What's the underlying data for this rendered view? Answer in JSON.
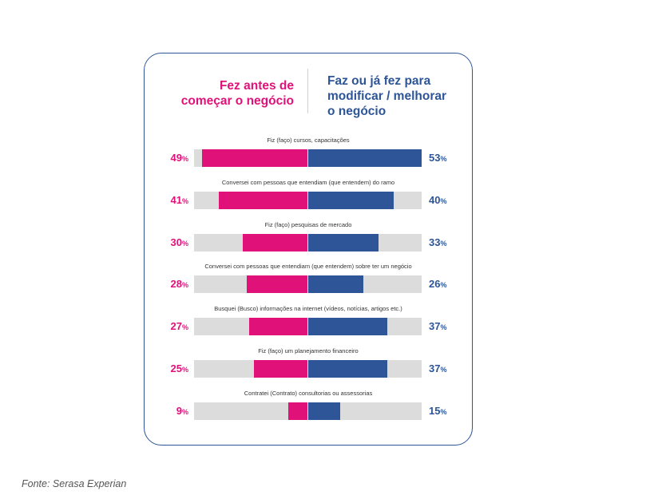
{
  "chart_data": {
    "type": "bar",
    "series": [
      {
        "name": "Fez antes de começar o negócio",
        "values": [
          49,
          41,
          30,
          28,
          27,
          25,
          9
        ]
      },
      {
        "name": "Faz ou já fez para modificar / melhorar o negócio",
        "values": [
          53,
          40,
          33,
          26,
          37,
          37,
          15
        ]
      }
    ],
    "categories": [
      "Fiz (faço) cursos, capacitações",
      "Conversei com pessoas que entendiam (que entendem) do ramo",
      "Fiz (faço) pesquisas de mercado",
      "Conversei com pessoas que entendiam (que entendem) sobre ter um negócio",
      "Busquei (Busco) informações na internet (vídeos, notícias, artigos etc.)",
      "Fiz (faço) um planejamento financeiro",
      "Contratei (Contrato) consultorias ou assessorias"
    ],
    "value_suffix": "%",
    "xlim": [
      0,
      100
    ],
    "colors": {
      "left": "#e0127a",
      "right": "#2d5597",
      "track": "#dcdcdc"
    }
  },
  "header": {
    "left_line1": "Fez antes de",
    "left_line2": "começar o negócio",
    "right_line1": "Faz ou já fez para",
    "right_line2": "modificar / melhorar",
    "right_line3": "o negócio"
  },
  "source": "Fonte: Serasa Experian"
}
